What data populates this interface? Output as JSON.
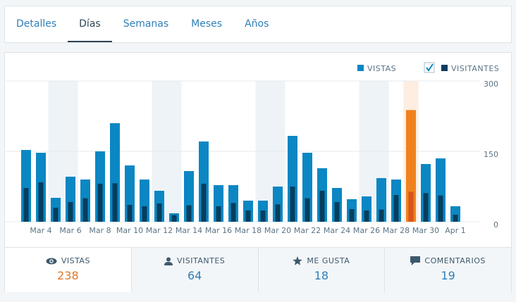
{
  "tabs": [
    "Detalles",
    "Días",
    "Semanas",
    "Meses",
    "Años"
  ],
  "active_tab": 1,
  "chart_data": {
    "type": "bar",
    "categories": [
      null,
      "Mar 4",
      null,
      "Mar 6",
      null,
      "Mar 8",
      null,
      "Mar 10",
      null,
      "Mar 12",
      null,
      "Mar 14",
      null,
      "Mar 16",
      null,
      "Mar 18",
      null,
      "Mar 20",
      null,
      "Mar 22",
      null,
      "Mar 24",
      null,
      "Mar 26",
      null,
      "Mar 28",
      null,
      "Mar 30",
      null,
      "Apr 1"
    ],
    "series": [
      {
        "name": "VISTAS",
        "color": "#0b87c3",
        "values": [
          153,
          147,
          51,
          96,
          90,
          150,
          210,
          120,
          90,
          66,
          18,
          108,
          171,
          78,
          78,
          45,
          45,
          75,
          183,
          147,
          114,
          72,
          48,
          54,
          93,
          90,
          238,
          123,
          135,
          33
        ]
      },
      {
        "name": "VISITANTES",
        "color": "#063e5e",
        "values": [
          72,
          84,
          30,
          42,
          50,
          81,
          82,
          36,
          33,
          39,
          14,
          35,
          81,
          33,
          40,
          24,
          24,
          37,
          75,
          50,
          66,
          42,
          27,
          24,
          26,
          57,
          64,
          61,
          56,
          15
        ]
      }
    ],
    "selected": 26,
    "selected_colors": [
      "#f0821e",
      "#d9531e"
    ],
    "ylim": [
      0,
      300
    ],
    "yticks": [
      0,
      150,
      300
    ],
    "grid": true
  },
  "stats": [
    {
      "label": "VISTAS",
      "value": 238
    },
    {
      "label": "VISITANTES",
      "value": 64
    },
    {
      "label": "ME GUSTA",
      "value": 18
    },
    {
      "label": "COMENTARIOS",
      "value": 19
    }
  ]
}
